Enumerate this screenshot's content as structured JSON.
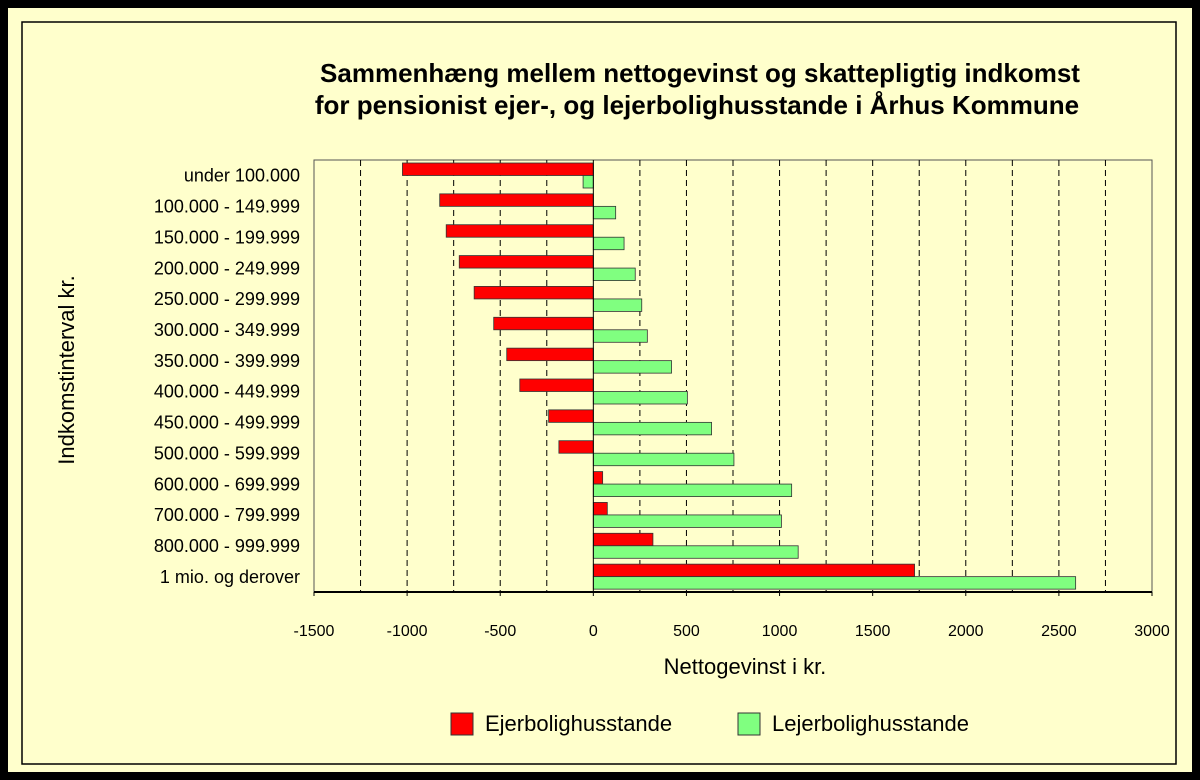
{
  "chart_data": {
    "type": "barh",
    "title": [
      "Sammenhæng mellem nettogevinst og skattepligtig indkomst",
      "for pensionist ejer-, og lejerbolighusstande i Århus Kommune"
    ],
    "xlabel": "Nettogevinst i kr.",
    "ylabel": "Indkomstinterval kr.",
    "categories": [
      "under 100.000",
      "100.000 - 149.999",
      "150.000 - 199.999",
      "200.000 - 249.999",
      "250.000 - 299.999",
      "300.000 - 349.999",
      "350.000 - 399.999",
      "400.000 - 449.999",
      "450.000 - 499.999",
      "500.000 - 599.999",
      "600.000 - 699.999",
      "700.000 - 799.999",
      "800.000 - 999.999",
      "1 mio. og derover"
    ],
    "series": [
      {
        "name": "Ejerbolighusstande",
        "color": "#ff0000",
        "values": [
          -1025,
          -825,
          -790,
          -720,
          -640,
          -535,
          -465,
          -395,
          -240,
          -185,
          50,
          75,
          320,
          1725
        ]
      },
      {
        "name": "Lejerbolighusstande",
        "color": "#80ff80",
        "values": [
          -55,
          120,
          165,
          225,
          260,
          290,
          420,
          505,
          635,
          755,
          1065,
          1010,
          1100,
          2590
        ]
      }
    ],
    "xlim": [
      -1500,
      3000
    ],
    "xticks": [
      -1500,
      -1000,
      -500,
      0,
      500,
      1000,
      1500,
      2000,
      2500,
      3000
    ],
    "xgridticks": [
      -1250,
      -1000,
      -750,
      -500,
      -250,
      250,
      500,
      750,
      1000,
      1250,
      1500,
      1750,
      2000,
      2250,
      2500,
      2750
    ],
    "grid": true,
    "legend": "bottom"
  }
}
